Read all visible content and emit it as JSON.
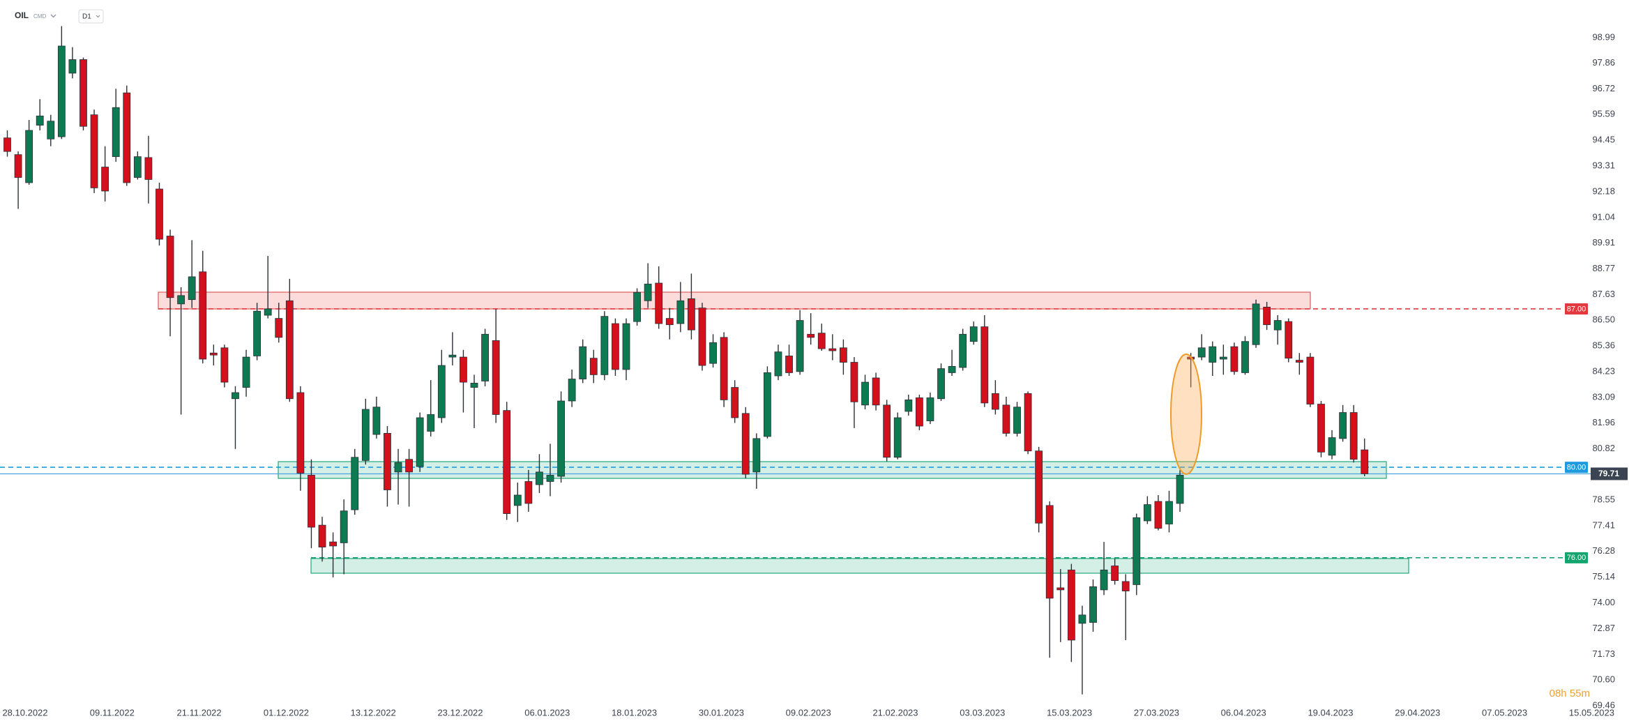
{
  "header": {
    "symbol": "OIL",
    "market": "CMD",
    "interval": "D1"
  },
  "countdown": "08h 55m",
  "chart_data": {
    "type": "candlestick",
    "up_color": "#0e7a52",
    "down_color": "#d3101c",
    "x_tick_labels": [
      "28.10.2022",
      "09.11.2022",
      "21.11.2022",
      "01.12.2022",
      "13.12.2022",
      "23.12.2022",
      "06.01.2023",
      "18.01.2023",
      "30.01.2023",
      "09.02.2023",
      "21.02.2023",
      "03.03.2023",
      "15.03.2023",
      "27.03.2023",
      "06.04.2023",
      "19.04.2023",
      "29.04.2023",
      "07.05.2023",
      "15.05.2023"
    ],
    "open": [
      94.56,
      93.82,
      92.58,
      95.12,
      94.51,
      94.61,
      97.42,
      98.02,
      95.58,
      93.27,
      93.73,
      96.55,
      92.81,
      93.69,
      92.3,
      90.22,
      87.22,
      87.41,
      88.64,
      85.05,
      85.28,
      83.03,
      83.53,
      84.92,
      86.72,
      86.58,
      87.36,
      83.3,
      79.65,
      77.44,
      76.7,
      76.66,
      78.12,
      80.3,
      81.45,
      81.5,
      79.79,
      80.35,
      80.03,
      81.59,
      82.19,
      84.87,
      84.87,
      83.53,
      83.81,
      85.6,
      82.51,
      78.31,
      79.37,
      79.23,
      79.37,
      79.6,
      82.93,
      83.9,
      84.82,
      84.09,
      86.35,
      84.32,
      86.44,
      87.36,
      88.14,
      86.58,
      86.35,
      87.45,
      87.04,
      84.59,
      85.74,
      83.53,
      82.38,
      79.79,
      81.36,
      84.04,
      84.92,
      84.23,
      85.88,
      85.93,
      85.24,
      85.28,
      84.64,
      82.75,
      83.95,
      82.75,
      80.44,
      82.47,
      83.07,
      82.05,
      83.03,
      84.18,
      84.41,
      85.56,
      86.21,
      83.26,
      82.75,
      81.5,
      83.26,
      80.72,
      78.31,
      74.67,
      75.46,
      73.1,
      73.14,
      74.58,
      75.64,
      74.95,
      74.81,
      77.63,
      78.49,
      77.49,
      78.4,
      84.87,
      84.87,
      84.64,
      84.78,
      85.33,
      84.18,
      85.42,
      87.08,
      86.07,
      86.44,
      84.73,
      84.87,
      82.79,
      80.53,
      81.27,
      82.42,
      80.77
    ],
    "high": [
      94.89,
      93.96,
      95.35,
      96.27,
      95.58,
      99.5,
      98.57,
      98.11,
      95.81,
      94.19,
      96.73,
      96.87,
      93.96,
      94.65,
      92.58,
      90.5,
      87.96,
      90.04,
      89.57,
      85.42,
      85.42,
      83.58,
      85.19,
      87.27,
      89.34,
      87.27,
      88.33,
      83.58,
      80.35,
      77.81,
      77.12,
      78.58,
      80.81,
      83.03,
      83.12,
      81.82,
      80.81,
      80.81,
      82.42,
      83.85,
      85.19,
      85.97,
      85.19,
      84.09,
      86.12,
      87.0,
      82.89,
      79.32,
      79.88,
      80.58,
      81.04,
      83.35,
      84.32,
      85.65,
      85.19,
      86.9,
      86.58,
      86.58,
      87.91,
      89.02,
      88.88,
      87.04,
      88.19,
      88.56,
      87.27,
      85.88,
      85.97,
      83.85,
      82.66,
      81.5,
      84.46,
      85.42,
      85.42,
      86.95,
      86.81,
      86.35,
      85.88,
      85.65,
      84.87,
      84.09,
      84.18,
      82.98,
      82.42,
      83.21,
      83.21,
      83.3,
      84.59,
      85.19,
      86.12,
      86.44,
      86.72,
      83.85,
      83.12,
      82.89,
      83.35,
      80.9,
      78.49,
      75.5,
      75.73,
      73.88,
      75.04,
      76.7,
      75.96,
      75.27,
      77.95,
      78.72,
      78.77,
      78.96,
      79.88,
      85.05,
      85.88,
      85.56,
      85.42,
      85.51,
      85.79,
      87.41,
      87.31,
      86.72,
      86.58,
      85.05,
      85.05,
      82.93,
      81.64,
      82.75,
      82.75,
      81.27
    ],
    "low": [
      93.73,
      91.42,
      92.49,
      94.89,
      94.19,
      94.51,
      97.19,
      94.89,
      92.12,
      91.75,
      93.5,
      92.44,
      92.72,
      91.66,
      89.8,
      85.79,
      82.33,
      87.04,
      84.59,
      84.5,
      83.53,
      80.81,
      83.12,
      84.73,
      86.58,
      85.51,
      82.89,
      78.96,
      76.42,
      75.83,
      75.13,
      75.27,
      77.9,
      80.12,
      81.27,
      78.26,
      78.35,
      78.26,
      79.79,
      81.36,
      81.96,
      84.5,
      82.42,
      81.73,
      83.58,
      81.96,
      77.67,
      77.58,
      78.03,
      78.86,
      78.72,
      79.32,
      82.66,
      83.72,
      83.72,
      83.85,
      84.04,
      83.85,
      86.26,
      87.04,
      86.12,
      85.65,
      85.97,
      85.65,
      84.27,
      84.41,
      82.66,
      81.96,
      79.51,
      79.05,
      81.27,
      83.85,
      84.04,
      84.09,
      85.42,
      85.15,
      84.73,
      84.09,
      81.73,
      82.56,
      82.51,
      80.26,
      80.35,
      82.28,
      81.64,
      81.91,
      82.93,
      84.04,
      84.27,
      85.42,
      82.66,
      82.33,
      81.36,
      81.36,
      80.58,
      77.12,
      71.58,
      72.27,
      71.39,
      69.96,
      72.73,
      74.35,
      74.81,
      72.36,
      74.35,
      77.49,
      77.21,
      77.12,
      78.03,
      83.53,
      84.73,
      84.04,
      84.09,
      84.09,
      84.09,
      85.28,
      86.07,
      85.42,
      84.64,
      84.09,
      82.66,
      80.44,
      80.35,
      81.13,
      80.21,
      79.6
    ],
    "close": [
      93.96,
      92.81,
      94.89,
      95.53,
      95.3,
      98.62,
      98.02,
      95.07,
      92.35,
      92.21,
      95.9,
      92.58,
      93.73,
      92.72,
      90.08,
      87.5,
      87.59,
      88.42,
      84.78,
      84.96,
      83.76,
      83.3,
      84.87,
      86.9,
      87.0,
      85.74,
      83.03,
      79.74,
      77.35,
      76.47,
      76.52,
      78.07,
      80.44,
      82.56,
      82.66,
      79.0,
      80.21,
      79.79,
      82.19,
      82.33,
      84.5,
      84.96,
      83.76,
      83.72,
      85.88,
      82.33,
      77.95,
      78.77,
      78.4,
      79.79,
      79.65,
      82.93,
      83.9,
      85.33,
      84.09,
      86.67,
      84.32,
      86.35,
      87.73,
      88.1,
      86.35,
      86.3,
      87.36,
      86.07,
      84.5,
      85.51,
      82.98,
      82.19,
      79.69,
      81.27,
      84.18,
      85.1,
      84.18,
      86.49,
      85.74,
      85.24,
      85.15,
      84.64,
      82.89,
      83.76,
      82.75,
      80.44,
      82.19,
      82.98,
      81.82,
      83.07,
      84.36,
      84.46,
      85.88,
      86.21,
      82.84,
      82.56,
      81.5,
      82.66,
      80.72,
      77.53,
      74.21,
      74.58,
      72.36,
      73.47,
      74.72,
      75.46,
      74.99,
      74.53,
      77.77,
      78.35,
      77.3,
      78.49,
      79.65,
      84.78,
      85.28,
      85.33,
      84.87,
      84.23,
      85.56,
      87.22,
      86.3,
      86.49,
      84.82,
      84.64,
      82.79,
      80.67,
      81.31,
      82.42,
      80.35,
      79.71
    ],
    "ylim": [
      69.46,
      98.99
    ],
    "yticks": [
      98.99,
      97.86,
      96.72,
      95.59,
      94.45,
      93.31,
      92.18,
      91.04,
      89.91,
      88.77,
      87.63,
      {
        "value": 86.5,
        "label": "86.50"
      },
      85.36,
      84.23,
      83.09,
      81.96,
      80.82,
      78.55,
      77.41,
      76.28,
      75.14,
      {
        "value": 74,
        "label": "74.00"
      },
      72.87,
      71.73,
      {
        "value": 70.6,
        "label": "70.60"
      },
      69.46
    ],
    "levels": [
      {
        "value": 87,
        "label": "87.00",
        "color": "#e0393e"
      },
      {
        "value": 80,
        "label": "80.00",
        "color": "#1e9be0"
      },
      {
        "value": 76,
        "label": "76.00",
        "color": "#14a56e"
      }
    ],
    "last_price": {
      "value": 79.71,
      "label": "79.71"
    }
  }
}
